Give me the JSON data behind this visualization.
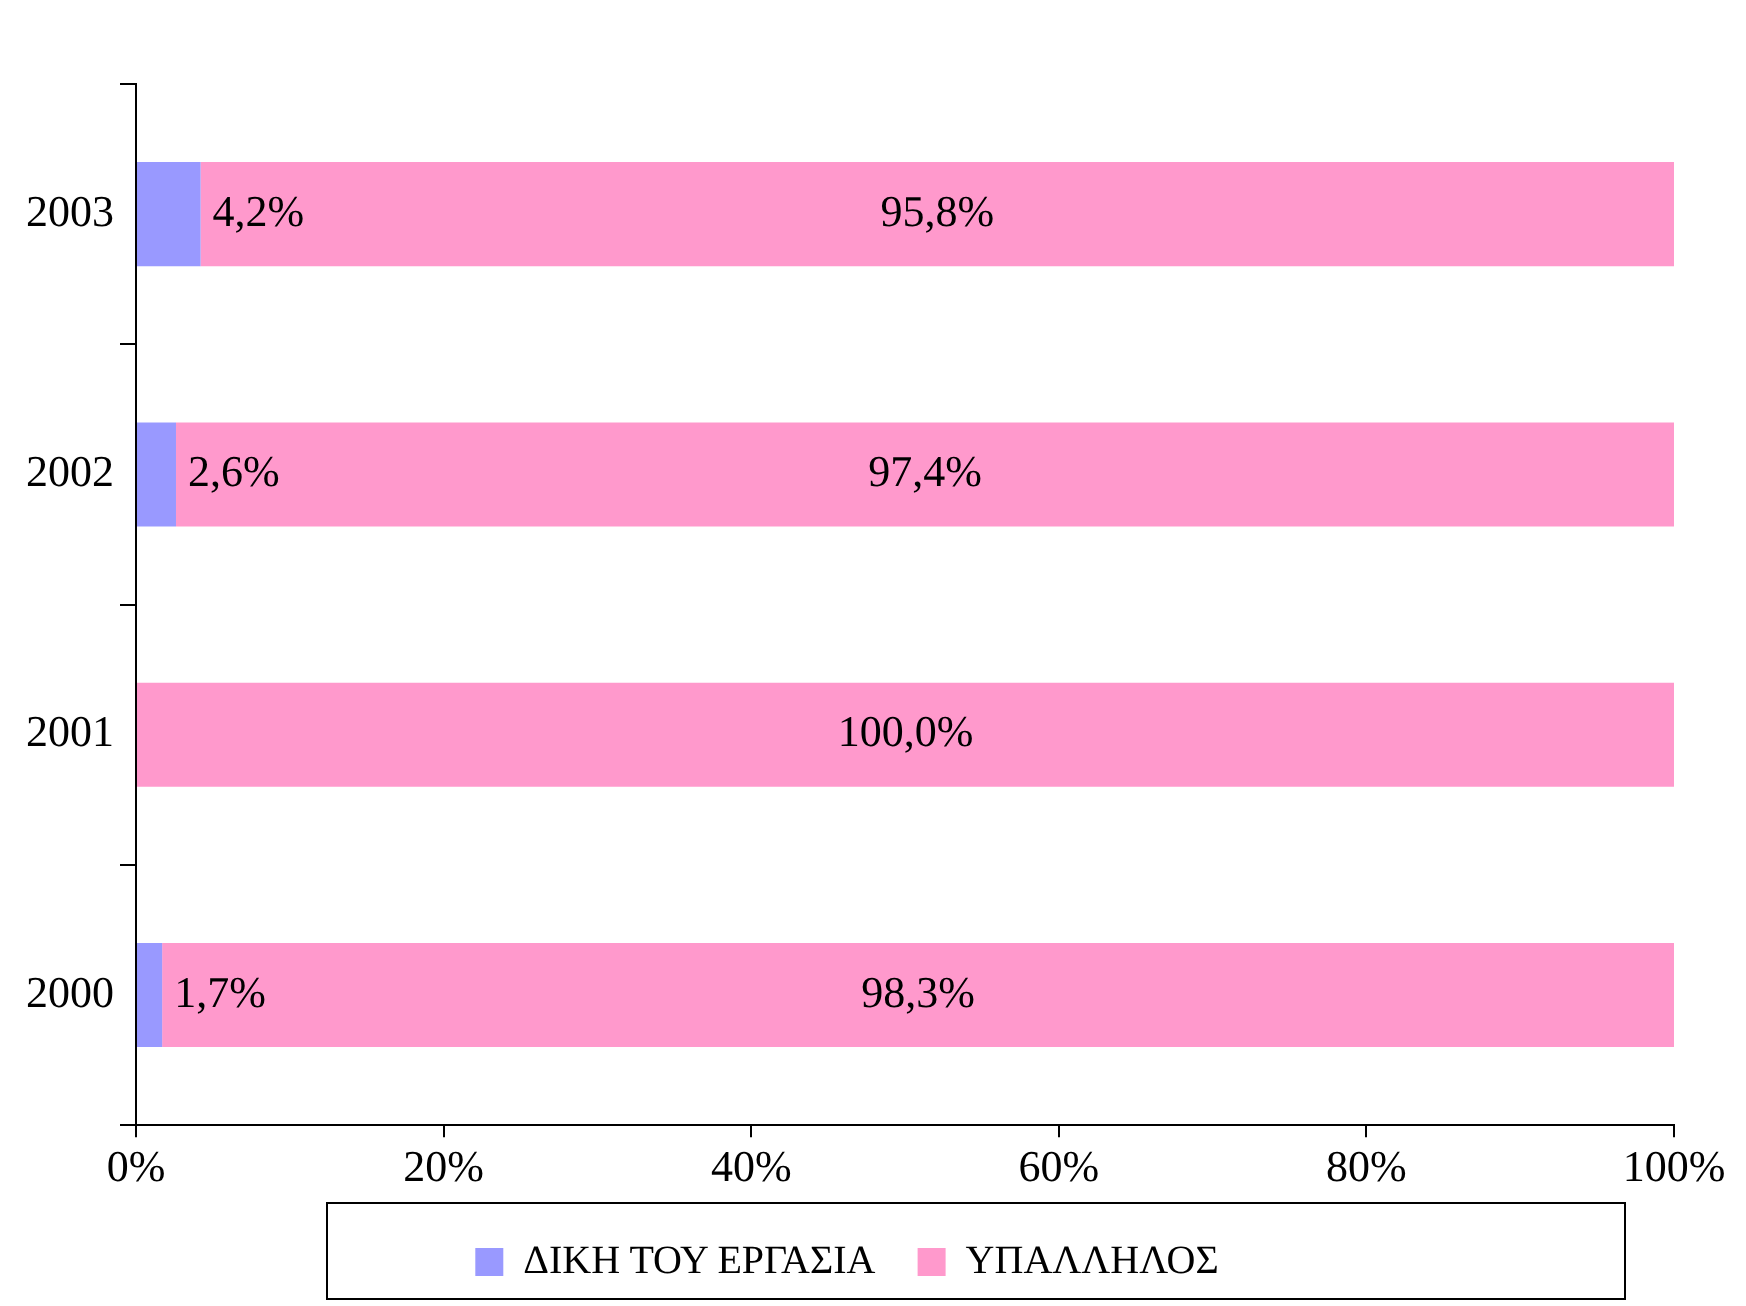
{
  "chart_data": {
    "type": "bar",
    "orientation": "horizontal",
    "stacked": true,
    "categories": [
      "2003",
      "2002",
      "2001",
      "2000"
    ],
    "series": [
      {
        "name": "ΔΙΚΗ ΤΟΥ ΕΡΓΑΣΙΑ",
        "color": "#9999ff",
        "values": [
          4.2,
          2.6,
          0,
          1.7
        ],
        "value_labels": [
          "4,2%",
          "2,6%",
          null,
          "1,7%"
        ]
      },
      {
        "name": "ΥΠΑΛΛΗΛΟΣ",
        "color": "#ff99cc",
        "values": [
          95.8,
          97.4,
          100,
          98.3
        ],
        "value_labels": [
          "95,8%",
          "97,4%",
          "100,0%",
          "98,3%"
        ]
      }
    ],
    "xlim": [
      0,
      100
    ],
    "xticks": [
      {
        "value": 0,
        "label": "0%"
      },
      {
        "value": 20,
        "label": "20%"
      },
      {
        "value": 40,
        "label": "40%"
      },
      {
        "value": 60,
        "label": "60%"
      },
      {
        "value": 80,
        "label": "80%"
      },
      {
        "value": 100,
        "label": "100%"
      }
    ],
    "grid": false,
    "legend": "bottom"
  }
}
